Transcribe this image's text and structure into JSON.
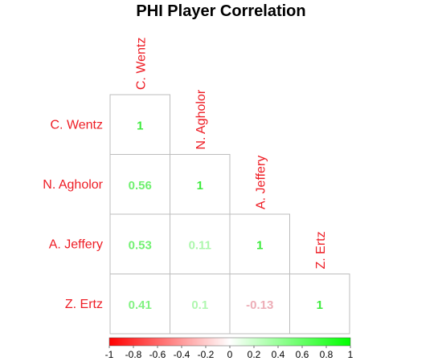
{
  "chart_data": {
    "type": "heatmap",
    "title": "PHI Player Correlation",
    "variables": [
      "C. Wentz",
      "N. Agholor",
      "A. Jeffery",
      "Z. Ertz"
    ],
    "matrix": [
      [
        1,
        null,
        null,
        null
      ],
      [
        0.56,
        1,
        null,
        null
      ],
      [
        0.53,
        0.11,
        1,
        null
      ],
      [
        0.41,
        0.1,
        -0.13,
        1
      ]
    ],
    "value_labels": [
      [
        "1",
        "",
        "",
        ""
      ],
      [
        "0.56",
        "1",
        "",
        ""
      ],
      [
        "0.53",
        "0.11",
        "1",
        ""
      ],
      [
        "0.41",
        "0.1",
        "-0.13",
        "1"
      ]
    ],
    "layout": "lower-triangle",
    "colorbar": {
      "range": [
        -1,
        1
      ],
      "ticks": [
        "-1",
        "-0.8",
        "-0.6",
        "-0.4",
        "-0.2",
        "0",
        "0.2",
        "0.4",
        "0.6",
        "0.8",
        "1"
      ],
      "low_color": "#ff0000",
      "mid_color": "#ffffff",
      "high_color": "#00ff00",
      "placement": "bottom"
    },
    "label_color": "#ee1c24"
  }
}
